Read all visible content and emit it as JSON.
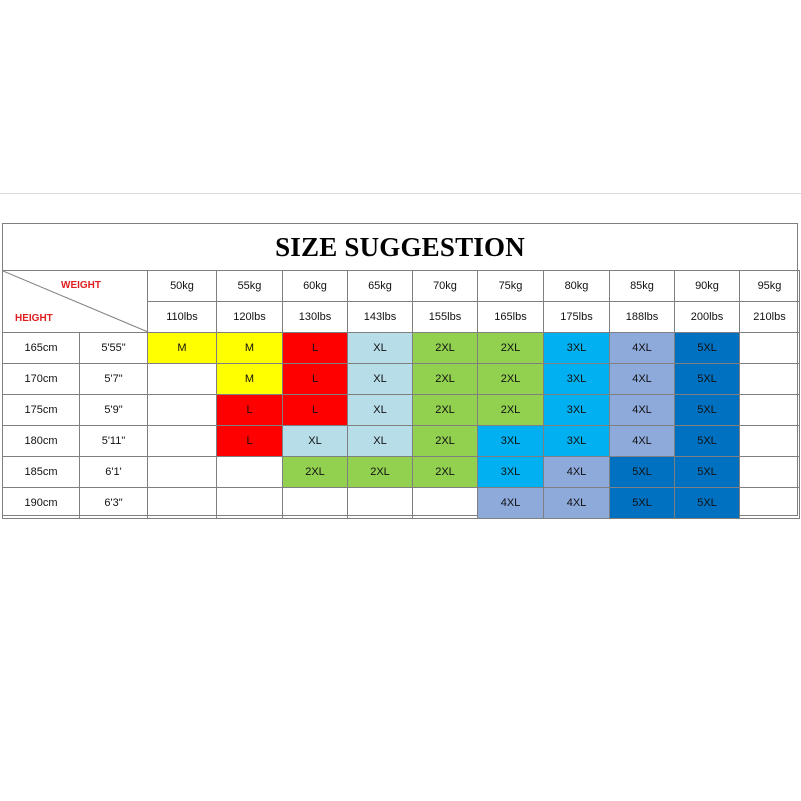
{
  "title": "SIZE SUGGESTION",
  "corner": {
    "weight_label": "WEIGHT",
    "height_label": "HEIGHT"
  },
  "weights_kg": [
    "50kg",
    "55kg",
    "60kg",
    "65kg",
    "70kg",
    "75kg",
    "80kg",
    "85kg",
    "90kg",
    "95kg"
  ],
  "weights_lbs": [
    "110lbs",
    "120lbs",
    "130lbs",
    "143lbs",
    "155lbs",
    "165lbs",
    "175lbs",
    "188lbs",
    "200lbs",
    "210lbs"
  ],
  "rows": [
    {
      "cm": "165cm",
      "ft": "5'55\"",
      "sizes": [
        "M",
        "M",
        "L",
        "XL",
        "2XL",
        "2XL",
        "3XL",
        "4XL",
        "5XL",
        ""
      ]
    },
    {
      "cm": "170cm",
      "ft": "5'7\"",
      "sizes": [
        "",
        "M",
        "L",
        "XL",
        "2XL",
        "2XL",
        "3XL",
        "4XL",
        "5XL",
        ""
      ]
    },
    {
      "cm": "175cm",
      "ft": "5'9\"",
      "sizes": [
        "",
        "L",
        "L",
        "XL",
        "2XL",
        "2XL",
        "3XL",
        "4XL",
        "5XL",
        ""
      ]
    },
    {
      "cm": "180cm",
      "ft": "5'11\"",
      "sizes": [
        "",
        "L",
        "XL",
        "XL",
        "2XL",
        "3XL",
        "3XL",
        "4XL",
        "5XL",
        ""
      ]
    },
    {
      "cm": "185cm",
      "ft": "6'1'",
      "sizes": [
        "",
        "",
        "2XL",
        "2XL",
        "2XL",
        "3XL",
        "4XL",
        "5XL",
        "5XL",
        ""
      ]
    },
    {
      "cm": "190cm",
      "ft": "6'3\"",
      "sizes": [
        "",
        "",
        "",
        "",
        "",
        "4XL",
        "4XL",
        "5XL",
        "5XL",
        ""
      ]
    }
  ],
  "size_colors": {
    "M": "#ffff00",
    "L": "#ff0000",
    "XL": "#b7dde8",
    "2XL": "#92d050",
    "3XL": "#00b0f0",
    "4XL": "#8eaadb",
    "5XL": "#0070c0"
  },
  "accent_red": "#e02020"
}
